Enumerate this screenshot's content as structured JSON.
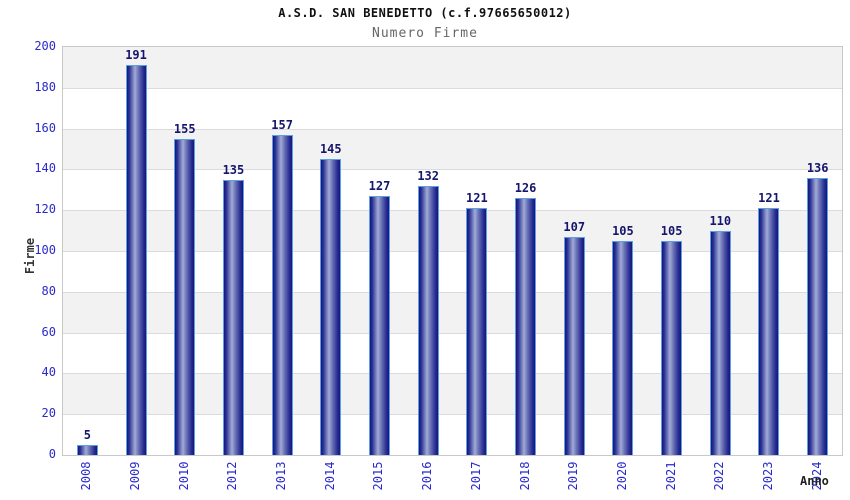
{
  "header": {
    "title": "A.S.D. SAN BENEDETTO (c.f.97665650012)",
    "subtitle": "Numero Firme"
  },
  "axes": {
    "y_title": "Firme",
    "x_title": "Anno"
  },
  "chart_data": {
    "type": "bar",
    "title": "A.S.D. SAN BENEDETTO (c.f.97665650012)",
    "subtitle": "Numero Firme",
    "xlabel": "Anno",
    "ylabel": "Firme",
    "categories": [
      "2008",
      "2009",
      "2010",
      "2012",
      "2013",
      "2014",
      "2015",
      "2016",
      "2017",
      "2018",
      "2019",
      "2020",
      "2021",
      "2022",
      "2023",
      "2024"
    ],
    "values": [
      5,
      191,
      155,
      135,
      157,
      145,
      127,
      132,
      121,
      126,
      107,
      105,
      105,
      110,
      121,
      136
    ],
    "ylim": [
      0,
      200
    ],
    "yticks": [
      0,
      20,
      40,
      60,
      80,
      100,
      120,
      140,
      160,
      180,
      200
    ],
    "grid": "horizontal gridlines every 20 with alternating shaded bands",
    "legend": "none",
    "data_labels": "value shown above each bar",
    "colors": {
      "bar_dark": "#14177d",
      "bar_mid": "#6a73b5",
      "bar_light": "#a2aad8",
      "bar_border": "#5e9fe2",
      "value_label": "#15156e",
      "tick_label": "#2a2acc",
      "gridline": "#dbdbdb",
      "band_shaded": "#f2f2f2",
      "band_plain": "#ffffff",
      "plot_border": "#c8c8c8",
      "title_color": "#111111",
      "subtitle_color": "#666666",
      "axis_title_color": "#333333"
    }
  }
}
